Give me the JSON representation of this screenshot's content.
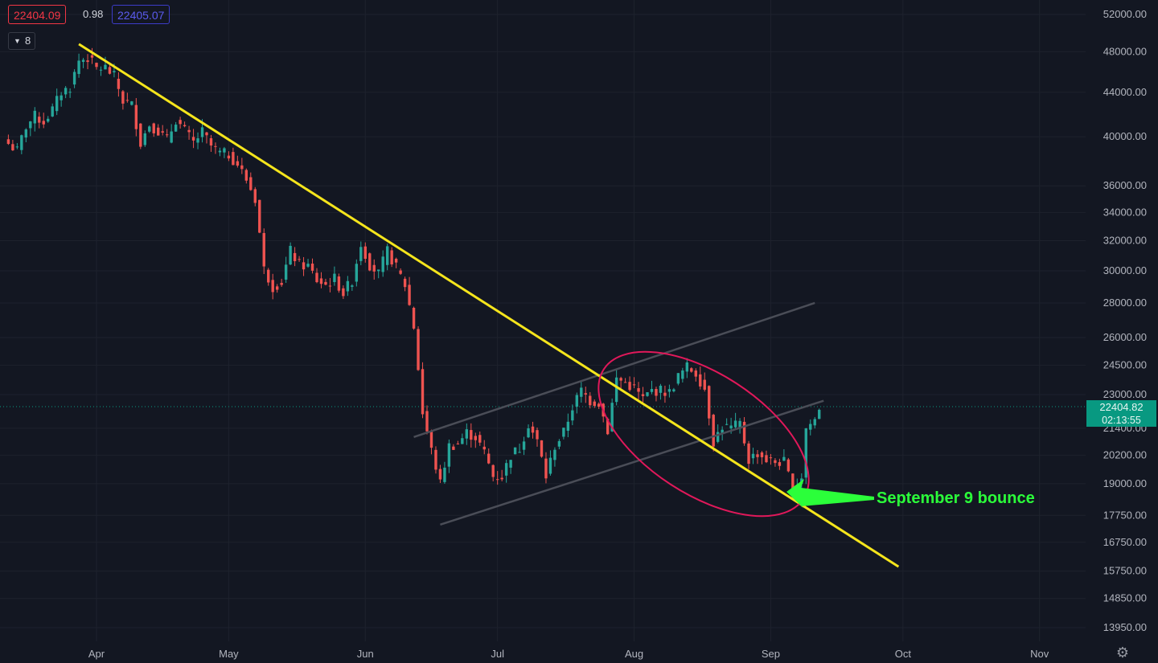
{
  "header": {
    "bid": "22404.09",
    "spread": "0.98",
    "ask": "22405.07",
    "indicator_count": "8"
  },
  "last_price": "22404.82",
  "countdown": "02:13:55",
  "annotation": "September 9 bounce",
  "colors": {
    "background": "#131722",
    "up": "#26a69a",
    "down": "#ef5350",
    "trendline": "#f5e51c",
    "ellipse": "#e0185a",
    "arrow": "#2bff3a",
    "channel": "#4a4d57",
    "price_tag": "#089981"
  },
  "icons": {
    "settings": "gear-icon",
    "collapse": "chevron-down-icon"
  },
  "chart_data": {
    "type": "candlestick",
    "scale": "log",
    "ylim": [
      13500,
      52500
    ],
    "y_ticks": [
      "52000.00",
      "48000.00",
      "44000.00",
      "40000.00",
      "36000.00",
      "34000.00",
      "32000.00",
      "30000.00",
      "28000.00",
      "26000.00",
      "24500.00",
      "23000.00",
      "21400.00",
      "20200.00",
      "19000.00",
      "17750.00",
      "16750.00",
      "15750.00",
      "14850.00",
      "13950.00"
    ],
    "x_ticks": [
      {
        "label": "Apr",
        "date": "2022-04-01"
      },
      {
        "label": "May",
        "date": "2022-05-01"
      },
      {
        "label": "Jun",
        "date": "2022-06-01"
      },
      {
        "label": "Jul",
        "date": "2022-07-01"
      },
      {
        "label": "Aug",
        "date": "2022-08-01"
      },
      {
        "label": "Sep",
        "date": "2022-09-01"
      },
      {
        "label": "Oct",
        "date": "2022-10-01"
      },
      {
        "label": "Nov",
        "date": "2022-11-01"
      }
    ],
    "x_start": "2022-03-12",
    "close_series": [
      {
        "date": "2022-03-12",
        "close": 39400
      },
      {
        "date": "2022-03-14",
        "close": 38800
      },
      {
        "date": "2022-03-16",
        "close": 40900
      },
      {
        "date": "2022-03-18",
        "close": 41800
      },
      {
        "date": "2022-03-20",
        "close": 41300
      },
      {
        "date": "2022-03-22",
        "close": 42400
      },
      {
        "date": "2022-03-24",
        "close": 44000
      },
      {
        "date": "2022-03-26",
        "close": 44500
      },
      {
        "date": "2022-03-28",
        "close": 47100
      },
      {
        "date": "2022-03-30",
        "close": 47400
      },
      {
        "date": "2022-04-01",
        "close": 46300
      },
      {
        "date": "2022-04-03",
        "close": 46400
      },
      {
        "date": "2022-04-05",
        "close": 45500
      },
      {
        "date": "2022-04-07",
        "close": 43200
      },
      {
        "date": "2022-04-09",
        "close": 42800
      },
      {
        "date": "2022-04-11",
        "close": 39500
      },
      {
        "date": "2022-04-13",
        "close": 41100
      },
      {
        "date": "2022-04-15",
        "close": 40500
      },
      {
        "date": "2022-04-17",
        "close": 39700
      },
      {
        "date": "2022-04-19",
        "close": 41500
      },
      {
        "date": "2022-04-21",
        "close": 40500
      },
      {
        "date": "2022-04-23",
        "close": 39500
      },
      {
        "date": "2022-04-25",
        "close": 40400
      },
      {
        "date": "2022-04-27",
        "close": 39200
      },
      {
        "date": "2022-04-29",
        "close": 38600
      },
      {
        "date": "2022-05-01",
        "close": 38500
      },
      {
        "date": "2022-05-03",
        "close": 37700
      },
      {
        "date": "2022-05-05",
        "close": 36500
      },
      {
        "date": "2022-05-07",
        "close": 35000
      },
      {
        "date": "2022-05-09",
        "close": 30100
      },
      {
        "date": "2022-05-11",
        "close": 29000
      },
      {
        "date": "2022-05-13",
        "close": 29300
      },
      {
        "date": "2022-05-15",
        "close": 31300
      },
      {
        "date": "2022-05-17",
        "close": 30400
      },
      {
        "date": "2022-05-19",
        "close": 30300
      },
      {
        "date": "2022-05-21",
        "close": 29400
      },
      {
        "date": "2022-05-23",
        "close": 29100
      },
      {
        "date": "2022-05-25",
        "close": 29500
      },
      {
        "date": "2022-05-27",
        "close": 28600
      },
      {
        "date": "2022-05-29",
        "close": 29400
      },
      {
        "date": "2022-05-31",
        "close": 31800
      },
      {
        "date": "2022-06-02",
        "close": 30400
      },
      {
        "date": "2022-06-04",
        "close": 29800
      },
      {
        "date": "2022-06-06",
        "close": 31300
      },
      {
        "date": "2022-06-08",
        "close": 30200
      },
      {
        "date": "2022-06-10",
        "close": 29100
      },
      {
        "date": "2022-06-12",
        "close": 26600
      },
      {
        "date": "2022-06-14",
        "close": 22100
      },
      {
        "date": "2022-06-16",
        "close": 20400
      },
      {
        "date": "2022-06-18",
        "close": 19000
      },
      {
        "date": "2022-06-20",
        "close": 20600
      },
      {
        "date": "2022-06-22",
        "close": 20700
      },
      {
        "date": "2022-06-24",
        "close": 21200
      },
      {
        "date": "2022-06-26",
        "close": 21000
      },
      {
        "date": "2022-06-28",
        "close": 20300
      },
      {
        "date": "2022-06-30",
        "close": 19300
      },
      {
        "date": "2022-07-02",
        "close": 19300
      },
      {
        "date": "2022-07-04",
        "close": 20200
      },
      {
        "date": "2022-07-06",
        "close": 20500
      },
      {
        "date": "2022-07-08",
        "close": 21600
      },
      {
        "date": "2022-07-10",
        "close": 20800
      },
      {
        "date": "2022-07-12",
        "close": 19300
      },
      {
        "date": "2022-07-14",
        "close": 20600
      },
      {
        "date": "2022-07-16",
        "close": 21200
      },
      {
        "date": "2022-07-18",
        "close": 22400
      },
      {
        "date": "2022-07-20",
        "close": 23200
      },
      {
        "date": "2022-07-22",
        "close": 22700
      },
      {
        "date": "2022-07-24",
        "close": 22600
      },
      {
        "date": "2022-07-26",
        "close": 21300
      },
      {
        "date": "2022-07-28",
        "close": 23800
      },
      {
        "date": "2022-07-30",
        "close": 23600
      },
      {
        "date": "2022-08-01",
        "close": 23300
      },
      {
        "date": "2022-08-03",
        "close": 22800
      },
      {
        "date": "2022-08-05",
        "close": 23200
      },
      {
        "date": "2022-08-07",
        "close": 23200
      },
      {
        "date": "2022-08-09",
        "close": 23100
      },
      {
        "date": "2022-08-11",
        "close": 23900
      },
      {
        "date": "2022-08-13",
        "close": 24400
      },
      {
        "date": "2022-08-15",
        "close": 24100
      },
      {
        "date": "2022-08-17",
        "close": 23300
      },
      {
        "date": "2022-08-19",
        "close": 20800
      },
      {
        "date": "2022-08-21",
        "close": 21500
      },
      {
        "date": "2022-08-23",
        "close": 21400
      },
      {
        "date": "2022-08-25",
        "close": 21600
      },
      {
        "date": "2022-08-27",
        "close": 20000
      },
      {
        "date": "2022-08-29",
        "close": 20300
      },
      {
        "date": "2022-08-31",
        "close": 20000
      },
      {
        "date": "2022-09-02",
        "close": 19900
      },
      {
        "date": "2022-09-04",
        "close": 19900
      },
      {
        "date": "2022-09-06",
        "close": 18800
      },
      {
        "date": "2022-09-08",
        "close": 19300
      },
      {
        "date": "2022-09-09",
        "close": 21400
      },
      {
        "date": "2022-09-11",
        "close": 21800
      },
      {
        "date": "2022-09-12",
        "close": 22400
      }
    ],
    "drawings": {
      "trendline": [
        {
          "date": "2022-03-28",
          "price": 48800
        },
        {
          "date": "2022-09-30",
          "price": 15900
        }
      ],
      "channel_lower": [
        {
          "date": "2022-06-18",
          "price": 17400
        },
        {
          "date": "2022-09-13",
          "price": 22700
        }
      ],
      "channel_upper": [
        {
          "date": "2022-06-12",
          "price": 21000
        },
        {
          "date": "2022-09-11",
          "price": 28000
        }
      ]
    }
  }
}
